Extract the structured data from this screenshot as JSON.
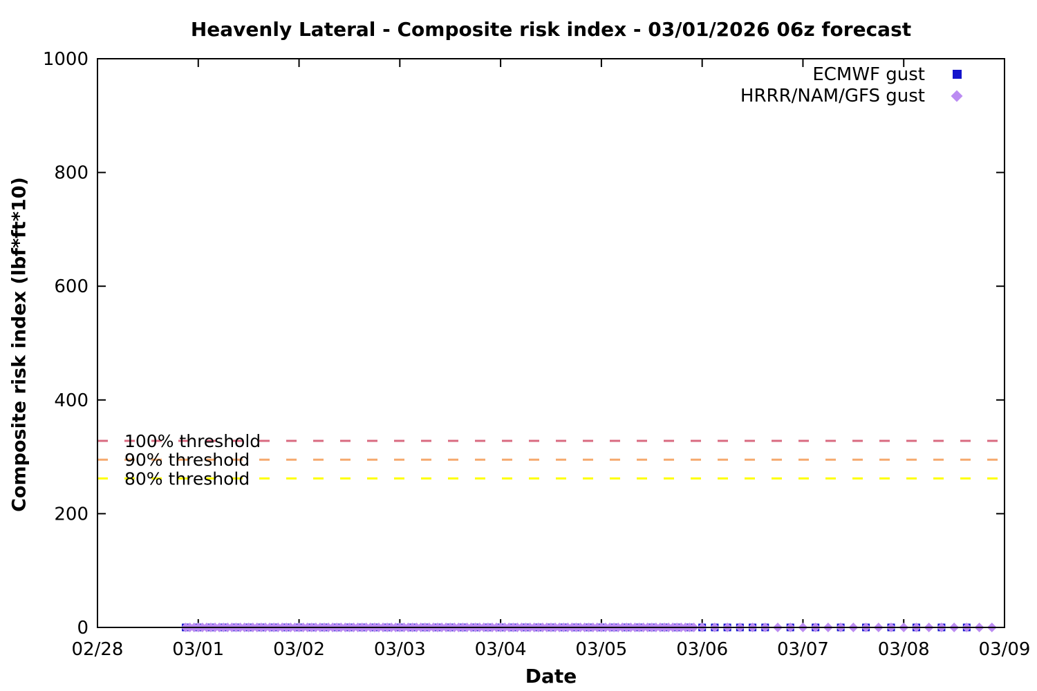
{
  "chart_data": {
    "type": "scatter",
    "title": "Heavenly Lateral - Composite risk index - 03/01/2026 06z forecast",
    "xlabel": "Date",
    "ylabel": "Composite risk index (lbf*ft*10)",
    "x_tick_labels": [
      "02/28",
      "03/01",
      "03/02",
      "03/03",
      "03/04",
      "03/05",
      "03/06",
      "03/07",
      "03/08",
      "03/09"
    ],
    "x_range_days": [
      0,
      9
    ],
    "ylim": [
      0,
      1000
    ],
    "y_ticks": [
      0,
      200,
      400,
      600,
      800,
      1000
    ],
    "grid": false,
    "legend_position": "top-right",
    "border_color": "#000000",
    "series": [
      {
        "name": "ECMWF gust",
        "marker": "square",
        "color": "#1414cc",
        "value_constant": 0,
        "time_segments": [
          {
            "start_day": 0.875,
            "end_day": 6.625,
            "step_hours": 3
          },
          {
            "start_day": 6.875,
            "end_day": 8.625,
            "step_hours": 6
          }
        ]
      },
      {
        "name": "HRRR/NAM/GFS gust",
        "marker": "diamond",
        "color": "#bb8bf2",
        "value_constant": 0,
        "time_segments": [
          {
            "start_day": 0.875,
            "end_day": 5.958,
            "step_hours": 1
          },
          {
            "start_day": 6.0,
            "end_day": 8.875,
            "step_hours": 3
          }
        ]
      }
    ],
    "thresholds": [
      {
        "label": "100% threshold",
        "value": 328,
        "color": "#d96a80"
      },
      {
        "label": "90% threshold",
        "value": 295,
        "color": "#f5a96e"
      },
      {
        "label": "80% threshold",
        "value": 262,
        "color": "#ffff00"
      }
    ]
  }
}
